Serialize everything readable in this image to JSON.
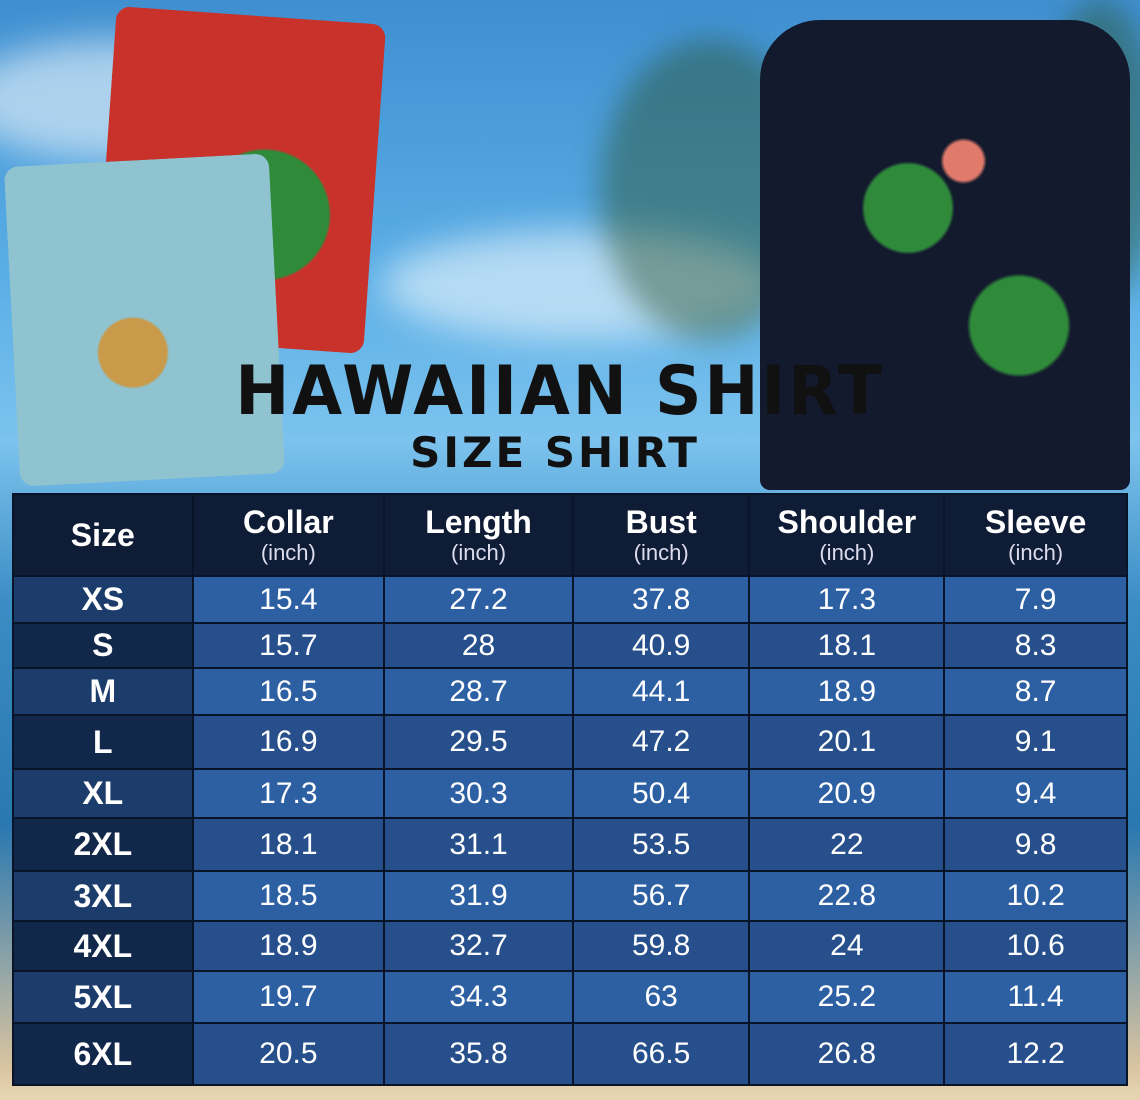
{
  "title": "HAWAIIAN SHIRT",
  "subtitle": "SIZE SHIRT",
  "colors": {
    "header": "#0f1c36",
    "cell_light": "#2d5fa3",
    "cell_dark": "#264f8b",
    "size_col": "#12284a"
  },
  "table": {
    "headers": [
      {
        "label": "Size",
        "unit": ""
      },
      {
        "label": "Collar",
        "unit": "(inch)"
      },
      {
        "label": "Length",
        "unit": "(inch)"
      },
      {
        "label": "Bust",
        "unit": "(inch)"
      },
      {
        "label": "Shoulder",
        "unit": "(inch)"
      },
      {
        "label": "Sleeve",
        "unit": "(inch)"
      }
    ],
    "rows": [
      [
        "XS",
        "15.4",
        "27.2",
        "37.8",
        "17.3",
        "7.9"
      ],
      [
        "S",
        "15.7",
        "28",
        "40.9",
        "18.1",
        "8.3"
      ],
      [
        "M",
        "16.5",
        "28.7",
        "44.1",
        "18.9",
        "8.7"
      ],
      [
        "L",
        "16.9",
        "29.5",
        "47.2",
        "20.1",
        "9.1"
      ],
      [
        "XL",
        "17.3",
        "30.3",
        "50.4",
        "20.9",
        "9.4"
      ],
      [
        "2XL",
        "18.1",
        "31.1",
        "53.5",
        "22",
        "9.8"
      ],
      [
        "3XL",
        "18.5",
        "31.9",
        "56.7",
        "22.8",
        "10.2"
      ],
      [
        "4XL",
        "18.9",
        "32.7",
        "59.8",
        "24",
        "10.6"
      ],
      [
        "5XL",
        "19.7",
        "34.3",
        "63",
        "25.2",
        "11.4"
      ],
      [
        "6XL",
        "20.5",
        "35.8",
        "66.5",
        "26.8",
        "12.2"
      ]
    ]
  }
}
